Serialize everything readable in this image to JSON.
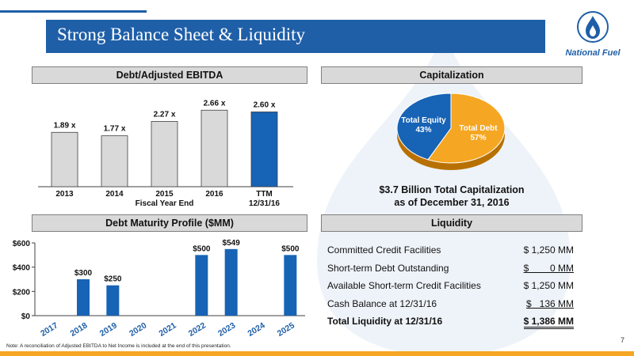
{
  "slide": {
    "title": "Strong Balance Sheet & Liquidity",
    "logo_text": "National Fuel",
    "page_number": "7",
    "footnote": "Note:  A reconciliation of Adjusted EBITDA to Net Income is included at the end of this presentation.",
    "colors": {
      "brand_blue": "#1f5fa8",
      "accent_orange": "#f5a623",
      "bar_gray": "#d9d9d9",
      "bar_blue": "#1763b5"
    }
  },
  "sections": {
    "debt_ebitda": "Debt/Adjusted EBITDA",
    "capitalization": "Capitalization",
    "maturity": "Debt Maturity Profile ($MM)",
    "liquidity": "Liquidity"
  },
  "chart_data": [
    {
      "type": "bar",
      "title": "Debt/Adjusted EBITDA",
      "categories": [
        "2013",
        "2014",
        "2015",
        "2016",
        "TTM"
      ],
      "category_sublabels": [
        "",
        "",
        "Fiscal Year End",
        "",
        "12/31/16"
      ],
      "values": [
        1.89,
        1.77,
        2.27,
        2.66,
        2.6
      ],
      "data_labels": [
        "1.89 x",
        "1.77 x",
        "2.27 x",
        "2.66 x",
        "2.60 x"
      ],
      "bar_colors": [
        "#d9d9d9",
        "#d9d9d9",
        "#d9d9d9",
        "#d9d9d9",
        "#1763b5"
      ],
      "ylim": [
        0,
        2.75
      ],
      "grid": false
    },
    {
      "type": "pie",
      "title": "Capitalization",
      "slices": [
        {
          "label": "Total Debt",
          "value": 57,
          "text": "57%",
          "color": "#f5a623"
        },
        {
          "label": "Total Equity",
          "value": 43,
          "text": "43%",
          "color": "#1763b5"
        }
      ],
      "caption_line1": "$3.7 Billion Total Capitalization",
      "caption_line2": "as of December 31, 2016"
    },
    {
      "type": "bar",
      "title": "Debt Maturity Profile ($MM)",
      "categories": [
        "2017",
        "2018",
        "2019",
        "2020",
        "2021",
        "2022",
        "2023",
        "2024",
        "2025"
      ],
      "values": [
        0,
        300,
        250,
        0,
        0,
        500,
        549,
        0,
        500
      ],
      "data_labels": [
        "",
        "$300",
        "$250",
        "",
        "",
        "$500",
        "$549",
        "",
        "$500"
      ],
      "y_ticks": [
        "$0",
        "$200",
        "$400",
        "$600"
      ],
      "y_tick_values": [
        0,
        200,
        400,
        600
      ],
      "ylim": [
        0,
        600
      ],
      "grid": false
    }
  ],
  "liquidity": [
    {
      "label": "Committed Credit Facilities",
      "value": "$ 1,250 MM",
      "underline": false,
      "total": false
    },
    {
      "label": "Short-term Debt Outstanding",
      "value": "$        0 MM",
      "underline": true,
      "total": false
    },
    {
      "label": "Available Short-term Credit Facilities",
      "value": "$ 1,250 MM",
      "underline": false,
      "total": false
    },
    {
      "label": "Cash Balance at 12/31/16",
      "value": "$   136 MM",
      "underline": true,
      "total": false
    },
    {
      "label": "Total Liquidity at 12/31/16",
      "value": "$ 1,386 MM",
      "underline": false,
      "total": true
    }
  ]
}
